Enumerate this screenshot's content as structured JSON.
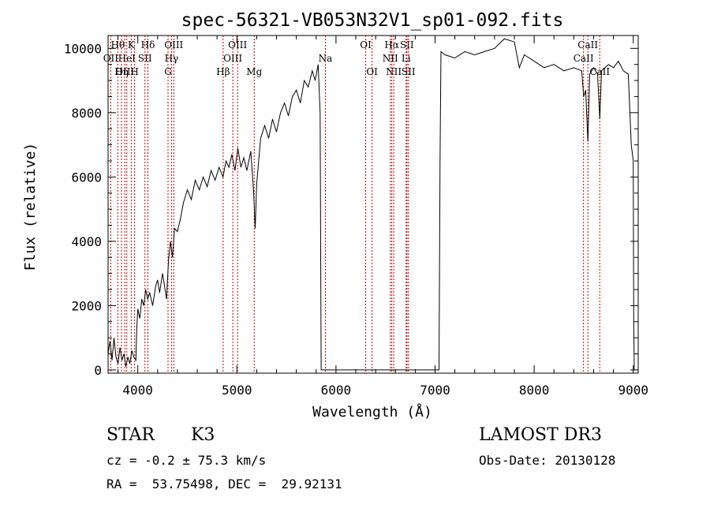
{
  "chart_data": {
    "type": "line",
    "title": "spec-56321-VB053N32V1_sp01-092.fits",
    "xlabel": "Wavelength (Å)",
    "ylabel": "Flux (relative)",
    "xlim": [
      3700,
      9050
    ],
    "ylim": [
      -100,
      10400
    ],
    "x_ticks": [
      4000,
      5000,
      6000,
      7000,
      8000,
      9000
    ],
    "y_ticks": [
      0,
      2000,
      4000,
      6000,
      8000,
      10000
    ],
    "x_tick_labels": [
      "4000",
      "5000",
      "6000",
      "7000",
      "8000",
      "9000"
    ],
    "y_tick_labels": [
      "0",
      "2000",
      "4000",
      "6000",
      "8000",
      "10000"
    ],
    "grid": false,
    "line_color": "#000000",
    "marker_color": "#cc0000",
    "series": [
      {
        "name": "flux",
        "points": [
          [
            3700,
            500
          ],
          [
            3720,
            900
          ],
          [
            3740,
            300
          ],
          [
            3760,
            1000
          ],
          [
            3780,
            400
          ],
          [
            3800,
            200
          ],
          [
            3820,
            700
          ],
          [
            3840,
            300
          ],
          [
            3860,
            500
          ],
          [
            3880,
            100
          ],
          [
            3900,
            400
          ],
          [
            3920,
            200
          ],
          [
            3940,
            600
          ],
          [
            3960,
            400
          ],
          [
            3980,
            300
          ],
          [
            3990,
            1300
          ],
          [
            4000,
            1900
          ],
          [
            4020,
            1600
          ],
          [
            4040,
            2200
          ],
          [
            4060,
            2000
          ],
          [
            4080,
            2500
          ],
          [
            4100,
            2200
          ],
          [
            4120,
            2400
          ],
          [
            4150,
            2000
          ],
          [
            4180,
            2600
          ],
          [
            4200,
            2800
          ],
          [
            4220,
            2400
          ],
          [
            4250,
            3000
          ],
          [
            4270,
            2600
          ],
          [
            4290,
            2200
          ],
          [
            4310,
            3400
          ],
          [
            4330,
            4000
          ],
          [
            4350,
            3500
          ],
          [
            4370,
            4400
          ],
          [
            4400,
            4300
          ],
          [
            4430,
            4700
          ],
          [
            4460,
            5200
          ],
          [
            4500,
            5600
          ],
          [
            4540,
            5300
          ],
          [
            4580,
            5900
          ],
          [
            4620,
            5600
          ],
          [
            4660,
            6000
          ],
          [
            4700,
            5700
          ],
          [
            4740,
            6200
          ],
          [
            4780,
            5900
          ],
          [
            4820,
            6300
          ],
          [
            4860,
            6000
          ],
          [
            4890,
            6500
          ],
          [
            4920,
            6300
          ],
          [
            4950,
            6700
          ],
          [
            4980,
            6200
          ],
          [
            5010,
            6900
          ],
          [
            5040,
            6300
          ],
          [
            5070,
            6600
          ],
          [
            5100,
            6200
          ],
          [
            5140,
            6800
          ],
          [
            5170,
            5500
          ],
          [
            5185,
            4400
          ],
          [
            5200,
            5800
          ],
          [
            5240,
            7200
          ],
          [
            5280,
            7600
          ],
          [
            5320,
            7200
          ],
          [
            5360,
            7800
          ],
          [
            5400,
            7400
          ],
          [
            5440,
            8000
          ],
          [
            5480,
            8300
          ],
          [
            5520,
            7900
          ],
          [
            5560,
            8500
          ],
          [
            5600,
            8700
          ],
          [
            5640,
            8300
          ],
          [
            5680,
            9000
          ],
          [
            5720,
            8800
          ],
          [
            5760,
            9300
          ],
          [
            5790,
            9000
          ],
          [
            5820,
            9500
          ],
          [
            5840,
            8000
          ],
          [
            5850,
            0
          ],
          [
            5860,
            0
          ],
          [
            7040,
            0
          ],
          [
            7050,
            6500
          ],
          [
            7060,
            9900
          ],
          [
            7100,
            9800
          ],
          [
            7200,
            9700
          ],
          [
            7300,
            9900
          ],
          [
            7400,
            9800
          ],
          [
            7500,
            9900
          ],
          [
            7600,
            10000
          ],
          [
            7700,
            10300
          ],
          [
            7800,
            10200
          ],
          [
            7850,
            9400
          ],
          [
            7900,
            9800
          ],
          [
            8000,
            9600
          ],
          [
            8100,
            9400
          ],
          [
            8200,
            9500
          ],
          [
            8300,
            9300
          ],
          [
            8400,
            9400
          ],
          [
            8480,
            9300
          ],
          [
            8500,
            8500
          ],
          [
            8520,
            8700
          ],
          [
            8542,
            7100
          ],
          [
            8560,
            9200
          ],
          [
            8600,
            9400
          ],
          [
            8640,
            9200
          ],
          [
            8662,
            7800
          ],
          [
            8680,
            9300
          ],
          [
            8750,
            9500
          ],
          [
            8800,
            9400
          ],
          [
            8850,
            9600
          ],
          [
            8900,
            9300
          ],
          [
            8950,
            9200
          ],
          [
            8980,
            7000
          ],
          [
            9000,
            6500
          ],
          [
            9005,
            1500
          ],
          [
            9010,
            0
          ]
        ]
      }
    ],
    "spectral_lines": [
      {
        "label": "Hθ",
        "wavelength": 3798,
        "row": 0,
        "side": "top"
      },
      {
        "label": "OII",
        "wavelength": 3727,
        "row": 1,
        "side": "top"
      },
      {
        "label": "OIII",
        "wavelength": 3869,
        "row": 2,
        "side": "top"
      },
      {
        "label": "K",
        "wavelength": 3934,
        "row": 0,
        "side": "top"
      },
      {
        "label": "HeI",
        "wavelength": 3889,
        "row": 1,
        "side": "top"
      },
      {
        "label": "Hη",
        "wavelength": 3835,
        "row": 2,
        "side": "top"
      },
      {
        "label": "Hδ",
        "wavelength": 4102,
        "row": 0,
        "side": "top"
      },
      {
        "label": "SII",
        "wavelength": 4072,
        "row": 1,
        "side": "top"
      },
      {
        "label": "H",
        "wavelength": 3968,
        "row": 2,
        "side": "top"
      },
      {
        "label": "OIII",
        "wavelength": 4363,
        "row": 0,
        "side": "top"
      },
      {
        "label": "Hγ",
        "wavelength": 4340,
        "row": 1,
        "side": "top"
      },
      {
        "label": "G",
        "wavelength": 4305,
        "row": 2,
        "side": "top"
      },
      {
        "label": "Hβ",
        "wavelength": 4861,
        "row": 2,
        "side": "top"
      },
      {
        "label": "OIII",
        "wavelength": 5007,
        "row": 0,
        "side": "top"
      },
      {
        "label": "OIII",
        "wavelength": 4959,
        "row": 1,
        "side": "top"
      },
      {
        "label": "Mg",
        "wavelength": 5175,
        "row": 2,
        "side": "top"
      },
      {
        "label": "Na",
        "wavelength": 5893,
        "row": 1,
        "side": "top"
      },
      {
        "label": "OI",
        "wavelength": 6300,
        "row": 0,
        "side": "top"
      },
      {
        "label": "OI",
        "wavelength": 6364,
        "row": 2,
        "side": "top"
      },
      {
        "label": "Hα",
        "wavelength": 6563,
        "row": 0,
        "side": "top"
      },
      {
        "label": "NII",
        "wavelength": 6548,
        "row": 1,
        "side": "top"
      },
      {
        "label": "NII",
        "wavelength": 6583,
        "row": 2,
        "side": "top"
      },
      {
        "label": "SII",
        "wavelength": 6716,
        "row": 0,
        "side": "top"
      },
      {
        "label": "Li",
        "wavelength": 6708,
        "row": 1,
        "side": "top"
      },
      {
        "label": "SII",
        "wavelength": 6731,
        "row": 2,
        "side": "top"
      },
      {
        "label": "CaII",
        "wavelength": 8542,
        "row": 0,
        "side": "top"
      },
      {
        "label": "CaII",
        "wavelength": 8498,
        "row": 1,
        "side": "top"
      },
      {
        "label": "CaII",
        "wavelength": 8662,
        "row": 2,
        "side": "top"
      }
    ]
  },
  "info": {
    "object_class": "STAR",
    "subclass": "K3",
    "redshift": "cz = -0.2 ± 75.3 km/s",
    "coords": "RA =  53.75498, DEC =  29.92131",
    "survey": "LAMOST DR3",
    "obs_date": "Obs-Date: 20130128"
  }
}
